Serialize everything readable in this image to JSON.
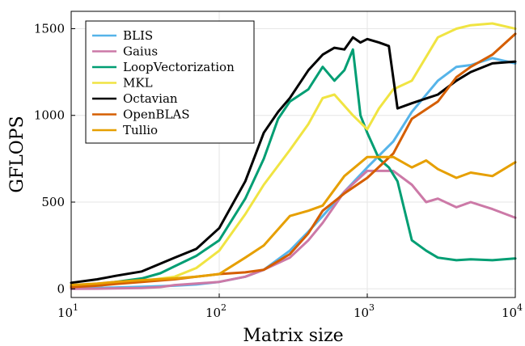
{
  "chart_data": {
    "type": "line",
    "xlabel": "Matrix size",
    "ylabel": "GFLOPS",
    "x_scale": "log10",
    "xlim": [
      10,
      10000
    ],
    "ylim": [
      -50,
      1600
    ],
    "x_ticks": [
      {
        "value": 10,
        "base": "10",
        "exp": "1"
      },
      {
        "value": 100,
        "base": "10",
        "exp": "2"
      },
      {
        "value": 1000,
        "base": "10",
        "exp": "3"
      },
      {
        "value": 10000,
        "base": "10",
        "exp": "4"
      }
    ],
    "y_ticks": [
      0,
      500,
      1000,
      1500
    ],
    "y_tick_labels": [
      "0",
      "500",
      "1000",
      "1500"
    ],
    "grid": true,
    "legend_position": "top-left",
    "series": [
      {
        "name": "BLIS",
        "color": "#56B4E9",
        "x": [
          10,
          15,
          20,
          30,
          50,
          70,
          100,
          150,
          200,
          300,
          400,
          500,
          700,
          1000,
          1500,
          2000,
          3000,
          4000,
          5000,
          7000,
          10000
        ],
        "y": [
          3,
          5,
          8,
          12,
          18,
          25,
          40,
          70,
          110,
          220,
          330,
          420,
          560,
          700,
          850,
          1020,
          1200,
          1280,
          1290,
          1330,
          1300
        ]
      },
      {
        "name": "Gaius",
        "color": "#CC79A7",
        "x": [
          10,
          15,
          20,
          30,
          40,
          50,
          70,
          100,
          150,
          200,
          300,
          400,
          500,
          700,
          1000,
          1500,
          2000,
          2500,
          3000,
          4000,
          5000,
          7000,
          10000
        ],
        "y": [
          0,
          1,
          2,
          5,
          10,
          22,
          30,
          40,
          70,
          110,
          180,
          280,
          380,
          560,
          680,
          680,
          600,
          500,
          520,
          470,
          500,
          460,
          410
        ]
      },
      {
        "name": "LoopVectorization",
        "color": "#009E73",
        "x": [
          10,
          15,
          20,
          30,
          40,
          50,
          70,
          100,
          150,
          200,
          250,
          300,
          400,
          500,
          600,
          700,
          800,
          900,
          1000,
          1200,
          1400,
          1600,
          2000,
          2500,
          3000,
          4000,
          5000,
          7000,
          10000
        ],
        "y": [
          20,
          28,
          40,
          60,
          90,
          130,
          190,
          280,
          520,
          750,
          980,
          1080,
          1150,
          1280,
          1200,
          1260,
          1380,
          1000,
          900,
          750,
          700,
          620,
          280,
          220,
          180,
          165,
          170,
          165,
          175
        ]
      },
      {
        "name": "MKL",
        "color": "#F0E442",
        "x": [
          10,
          15,
          20,
          30,
          50,
          70,
          100,
          150,
          200,
          300,
          400,
          500,
          600,
          800,
          1000,
          1200,
          1500,
          2000,
          3000,
          4000,
          5000,
          7000,
          10000
        ],
        "y": [
          15,
          20,
          30,
          45,
          70,
          120,
          220,
          430,
          600,
          800,
          950,
          1100,
          1120,
          1000,
          920,
          1040,
          1150,
          1200,
          1450,
          1500,
          1520,
          1530,
          1500
        ]
      },
      {
        "name": "Octavian",
        "color": "#000000",
        "x": [
          10,
          15,
          20,
          30,
          50,
          70,
          100,
          150,
          200,
          250,
          300,
          400,
          500,
          600,
          700,
          800,
          900,
          1000,
          1200,
          1400,
          1600,
          2000,
          3000,
          4000,
          5000,
          7000,
          10000
        ],
        "y": [
          35,
          55,
          75,
          100,
          180,
          230,
          350,
          620,
          900,
          1020,
          1100,
          1260,
          1350,
          1390,
          1380,
          1450,
          1420,
          1440,
          1420,
          1400,
          1040,
          1070,
          1120,
          1200,
          1250,
          1300,
          1310
        ]
      },
      {
        "name": "OpenBLAS",
        "color": "#D55E00",
        "x": [
          10,
          15,
          20,
          30,
          50,
          70,
          100,
          150,
          200,
          300,
          400,
          500,
          700,
          1000,
          1500,
          2000,
          3000,
          4000,
          5000,
          7000,
          10000
        ],
        "y": [
          10,
          18,
          28,
          40,
          55,
          70,
          85,
          95,
          110,
          200,
          320,
          450,
          550,
          640,
          780,
          980,
          1080,
          1220,
          1280,
          1350,
          1470
        ]
      },
      {
        "name": "Tullio",
        "color": "#E69F00",
        "x": [
          10,
          15,
          20,
          30,
          50,
          70,
          100,
          150,
          200,
          300,
          400,
          500,
          700,
          1000,
          1500,
          2000,
          2500,
          3000,
          4000,
          5000,
          7000,
          10000
        ],
        "y": [
          22,
          30,
          40,
          50,
          60,
          70,
          85,
          180,
          250,
          420,
          450,
          480,
          650,
          760,
          760,
          700,
          740,
          690,
          640,
          670,
          650,
          730
        ]
      }
    ]
  }
}
